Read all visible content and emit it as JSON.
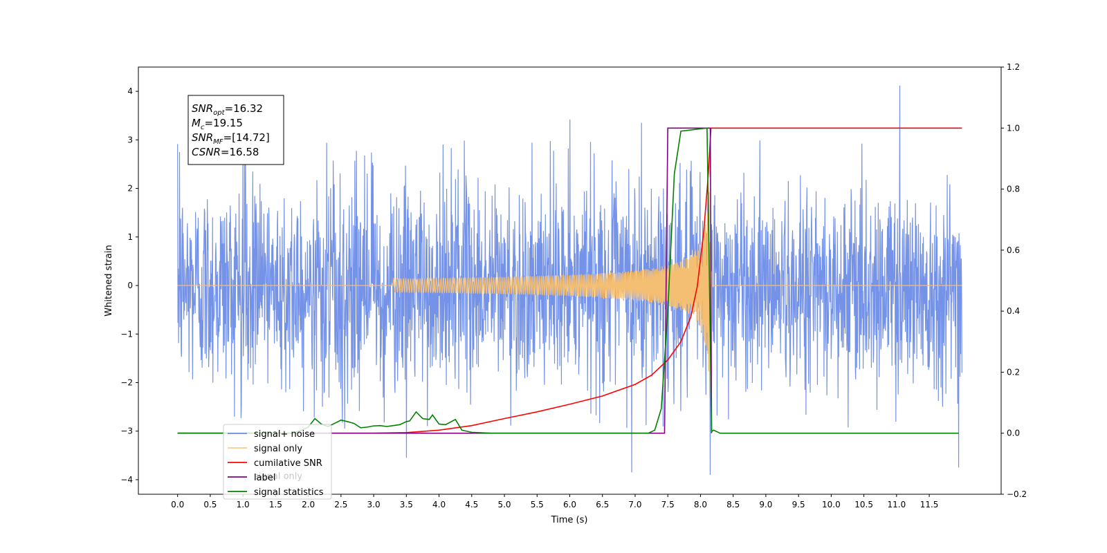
{
  "chart_data": {
    "type": "line",
    "title": "",
    "xlabel": "Time (s)",
    "ylabel": "Whitened strain",
    "y2label": "",
    "xlim": [
      -0.6,
      12.6
    ],
    "ylim": [
      -4.3,
      4.5
    ],
    "y2lim": [
      -0.2,
      1.2
    ],
    "grid": false,
    "x_ticks": [
      "0.0",
      "0.5",
      "1.0",
      "1.5",
      "2.0",
      "2.5",
      "3.0",
      "3.5",
      "4.0",
      "4.5",
      "5.0",
      "5.5",
      "6.0",
      "6.5",
      "7.0",
      "7.5",
      "8.0",
      "8.5",
      "9.0",
      "9.5",
      "10.0",
      "10.5",
      "11.0",
      "11.5"
    ],
    "y_ticks": [
      -4,
      -3,
      -2,
      -1,
      0,
      1,
      2,
      3,
      4
    ],
    "y2_ticks": [
      "−0.2",
      "0.0",
      "0.2",
      "0.4",
      "0.6",
      "0.8",
      "1.0",
      "1.2"
    ],
    "legend_placement": "lower-left",
    "info_box": [
      {
        "name": "SNR",
        "sub": "opt",
        "value": "=16.32"
      },
      {
        "name": "M",
        "sub": "c",
        "value": "=19.15"
      },
      {
        "name": "SNR",
        "sub": "MF",
        "value": "=[14.72]"
      },
      {
        "name": "CSNR",
        "sub": "",
        "value": "=16.58"
      }
    ],
    "series": [
      {
        "name": "signal+ noise",
        "axis": "left",
        "color": "#6d8ce6",
        "description_of_data": "Gaussian-like noise, roughly within ±2.5 with spikes up to ±4, spanning 0.0–12.0 s",
        "x_range": [
          0.0,
          12.0
        ],
        "approx_envelope": 2.3,
        "notable_spikes": [
          [
            0.03,
            2.75
          ],
          [
            1.0,
            3.2
          ],
          [
            6.0,
            3.42
          ],
          [
            7.1,
            3.35
          ],
          [
            8.15,
            3.8
          ],
          [
            8.15,
            -3.9
          ],
          [
            6.95,
            -3.85
          ],
          [
            11.05,
            4.12
          ],
          [
            11.95,
            -3.75
          ],
          [
            3.5,
            -3.55
          ]
        ]
      },
      {
        "name": "signal only",
        "axis": "left",
        "color": "#f5bf73",
        "description_of_data": "chirp waveform, ~0 until ~3.5 s then amplitude grows to ~±3.2 at 8.15 s, then 0",
        "x_range": [
          0.0,
          12.0
        ],
        "merger_time": 8.15,
        "peak_amplitude": 3.2
      },
      {
        "name": "cumilative SNR",
        "axis": "right",
        "color": "#ff0000",
        "points": [
          [
            0.0,
            0.0
          ],
          [
            3.0,
            0.0
          ],
          [
            3.5,
            0.002
          ],
          [
            4.0,
            0.01
          ],
          [
            4.5,
            0.025
          ],
          [
            5.0,
            0.048
          ],
          [
            5.5,
            0.07
          ],
          [
            6.0,
            0.095
          ],
          [
            6.5,
            0.122
          ],
          [
            7.0,
            0.16
          ],
          [
            7.25,
            0.19
          ],
          [
            7.5,
            0.24
          ],
          [
            7.7,
            0.3
          ],
          [
            7.85,
            0.38
          ],
          [
            7.95,
            0.48
          ],
          [
            8.05,
            0.66
          ],
          [
            8.12,
            0.85
          ],
          [
            8.16,
            1.0
          ],
          [
            12.0,
            1.0
          ]
        ]
      },
      {
        "name": "label",
        "axis": "right",
        "color": "#800080",
        "points": [
          [
            0.0,
            0.0
          ],
          [
            7.45,
            0.0
          ],
          [
            7.5,
            1.0
          ],
          [
            8.15,
            1.0
          ],
          [
            8.17,
            0.0
          ]
        ]
      },
      {
        "name": "signal statistics",
        "axis": "right",
        "color": "#008000",
        "points": [
          [
            0.0,
            0.0
          ],
          [
            1.75,
            0.0
          ],
          [
            1.9,
            0.01
          ],
          [
            2.0,
            0.02
          ],
          [
            2.1,
            0.048
          ],
          [
            2.2,
            0.03
          ],
          [
            2.3,
            0.022
          ],
          [
            2.4,
            0.032
          ],
          [
            2.5,
            0.043
          ],
          [
            2.6,
            0.038
          ],
          [
            2.7,
            0.032
          ],
          [
            2.8,
            0.018
          ],
          [
            2.9,
            0.02
          ],
          [
            3.0,
            0.024
          ],
          [
            3.1,
            0.025
          ],
          [
            3.2,
            0.022
          ],
          [
            3.3,
            0.025
          ],
          [
            3.4,
            0.028
          ],
          [
            3.5,
            0.038
          ],
          [
            3.55,
            0.04
          ],
          [
            3.65,
            0.07
          ],
          [
            3.75,
            0.048
          ],
          [
            3.85,
            0.045
          ],
          [
            3.9,
            0.06
          ],
          [
            4.0,
            0.03
          ],
          [
            4.1,
            0.028
          ],
          [
            4.25,
            0.045
          ],
          [
            4.35,
            0.01
          ],
          [
            4.5,
            0.003
          ],
          [
            4.8,
            0.0
          ],
          [
            7.2,
            0.0
          ],
          [
            7.3,
            0.01
          ],
          [
            7.4,
            0.08
          ],
          [
            7.5,
            0.4
          ],
          [
            7.6,
            0.85
          ],
          [
            7.7,
            0.99
          ],
          [
            8.1,
            1.0
          ],
          [
            8.13,
            0.6
          ],
          [
            8.17,
            0.005
          ],
          [
            8.2,
            0.01
          ],
          [
            8.3,
            0.0
          ],
          [
            11.95,
            0.0
          ]
        ]
      }
    ],
    "legend": [
      "signal+ noise",
      "signal only",
      "cumilative SNR",
      "label",
      "signal statistics"
    ],
    "legend_hidden_text": "signal only"
  }
}
